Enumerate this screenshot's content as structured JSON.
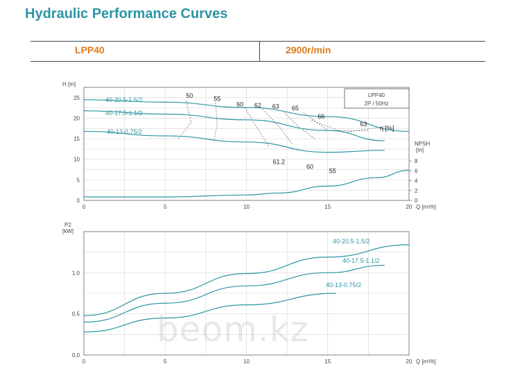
{
  "header": {
    "title": "Hydraulic Performance Curves",
    "model": "LPP40",
    "speed": "2900r/min"
  },
  "watermark": "beom.kz",
  "chart_data": [
    {
      "type": "line",
      "legend_box": [
        "LPP40",
        "2P / 50Hz"
      ],
      "y_label": "H [m]",
      "x_label": "Q [m³/h]",
      "xlim": [
        0,
        20
      ],
      "ylim": [
        0,
        27.5
      ],
      "x_ticks": [
        0,
        5,
        10,
        15,
        20
      ],
      "y_ticks": [
        0,
        5,
        10,
        15,
        20,
        25
      ],
      "grid": true,
      "series": [
        {
          "name": "40-20.5-1.5/2",
          "color": "#2b95a4",
          "x": [
            0,
            5,
            10,
            15,
            20
          ],
          "y": [
            24.5,
            23.9,
            22.6,
            20.4,
            16.8
          ]
        },
        {
          "name": "40-17.5-1.1/2",
          "color": "#2b95a4",
          "x": [
            0,
            5,
            10,
            15,
            18.5
          ],
          "y": [
            21.8,
            21.0,
            19.6,
            17.0,
            14.5
          ]
        },
        {
          "name": "40-13-0.75/2",
          "color": "#2b95a4",
          "x": [
            0,
            5,
            10,
            15,
            18.5
          ],
          "y": [
            16.8,
            15.7,
            14.2,
            11.7,
            12.2
          ]
        }
      ],
      "npsh": {
        "label": "NPSH [m]",
        "ylim": [
          0,
          9
        ],
        "ticks": [
          0,
          2,
          4,
          6,
          8
        ],
        "x": [
          0,
          5,
          10,
          12,
          15,
          18,
          20
        ],
        "y": [
          0.7,
          0.7,
          1.1,
          1.5,
          2.9,
          4.6,
          6.1
        ]
      },
      "efficiency": {
        "label": "η [%]",
        "labels_top": [
          {
            "value": "50",
            "x": 6.5,
            "y": 25.5
          },
          {
            "value": "55",
            "x": 8.2,
            "y": 24.7
          },
          {
            "value": "60",
            "x": 9.6,
            "y": 23.4
          },
          {
            "value": "62",
            "x": 10.7,
            "y": 23.1
          },
          {
            "value": "63",
            "x": 11.8,
            "y": 22.9
          },
          {
            "value": "65",
            "x": 13.0,
            "y": 22.4
          },
          {
            "value": "66",
            "x": 14.6,
            "y": 20.4
          },
          {
            "value": "63",
            "x": 17.2,
            "y": 18.6
          }
        ],
        "labels_bottom": [
          {
            "value": "61.2",
            "x": 12.0,
            "y": 9.4
          },
          {
            "value": "60",
            "x": 13.9,
            "y": 8.2
          },
          {
            "value": "55",
            "x": 15.3,
            "y": 7.2
          }
        ],
        "contours": [
          {
            "x": [
              6.3,
              6.6,
              5.8
            ],
            "y": [
              24.2,
              19.0,
              15.0
            ]
          },
          {
            "x": [
              8.1,
              8.2,
              8.0
            ],
            "y": [
              23.8,
              18.5,
              14.5
            ]
          },
          {
            "x": [
              9.9,
              10.6,
              11.4
            ],
            "y": [
              22.6,
              18.0,
              13.0
            ]
          },
          {
            "x": [
              11.0,
              12.0,
              12.8
            ],
            "y": [
              22.2,
              18.0,
              13.8
            ]
          },
          {
            "x": [
              12.2,
              13.2,
              14.2
            ],
            "y": [
              21.8,
              18.0,
              15.0
            ]
          },
          {
            "x": [
              13.5,
              15.0,
              17.5
            ],
            "y": [
              21.4,
              17.0,
              17.0
            ]
          },
          {
            "x": [
              14.0,
              16.0,
              18.5
            ],
            "y": [
              19.5,
              16.5,
              18.0
            ]
          }
        ]
      }
    },
    {
      "type": "line",
      "y_label": "P2 [kW]",
      "x_label": "Q [m³/h]",
      "xlim": [
        0,
        20
      ],
      "ylim": [
        0,
        1.5
      ],
      "x_ticks": [
        0,
        5,
        10,
        15,
        20
      ],
      "y_ticks": [
        0.0,
        0.5,
        1.0
      ],
      "grid": true,
      "series": [
        {
          "name": "40-20.5-1.5/2",
          "color": "#2b95a4",
          "x": [
            0,
            5,
            10,
            15,
            20
          ],
          "y": [
            0.48,
            0.75,
            0.99,
            1.19,
            1.34
          ]
        },
        {
          "name": "40-17.5-1.1/2",
          "color": "#2b95a4",
          "x": [
            0,
            5,
            10,
            15,
            18.5
          ],
          "y": [
            0.4,
            0.63,
            0.84,
            1.0,
            1.09
          ]
        },
        {
          "name": "40-13-0.75/2",
          "color": "#2b95a4",
          "x": [
            0,
            5,
            10,
            15.5
          ],
          "y": [
            0.28,
            0.45,
            0.61,
            0.75
          ]
        }
      ]
    }
  ]
}
